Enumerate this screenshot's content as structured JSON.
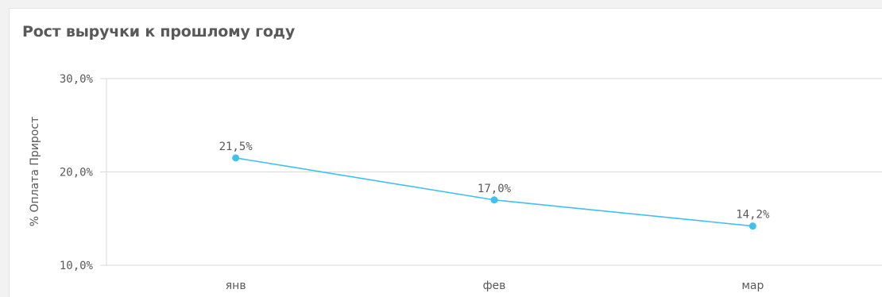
{
  "chart_data": {
    "type": "line",
    "title": "Рост выручки к прошлому году",
    "ylabel": "% Оплата Прирост",
    "xlabel": "",
    "categories": [
      "янв",
      "фев",
      "мар"
    ],
    "series": [
      {
        "values": [
          21.5,
          17.0,
          14.2
        ],
        "labels": [
          "21,5%",
          "17,0%",
          "14,2%"
        ],
        "color": "#3ec1ef"
      }
    ],
    "yticks": [
      {
        "value": 30,
        "label": "30,0%"
      },
      {
        "value": 20,
        "label": "20,0%"
      },
      {
        "value": 10,
        "label": "10,0%"
      }
    ],
    "ylim": [
      10,
      30
    ],
    "grid": true,
    "legend": "none"
  }
}
